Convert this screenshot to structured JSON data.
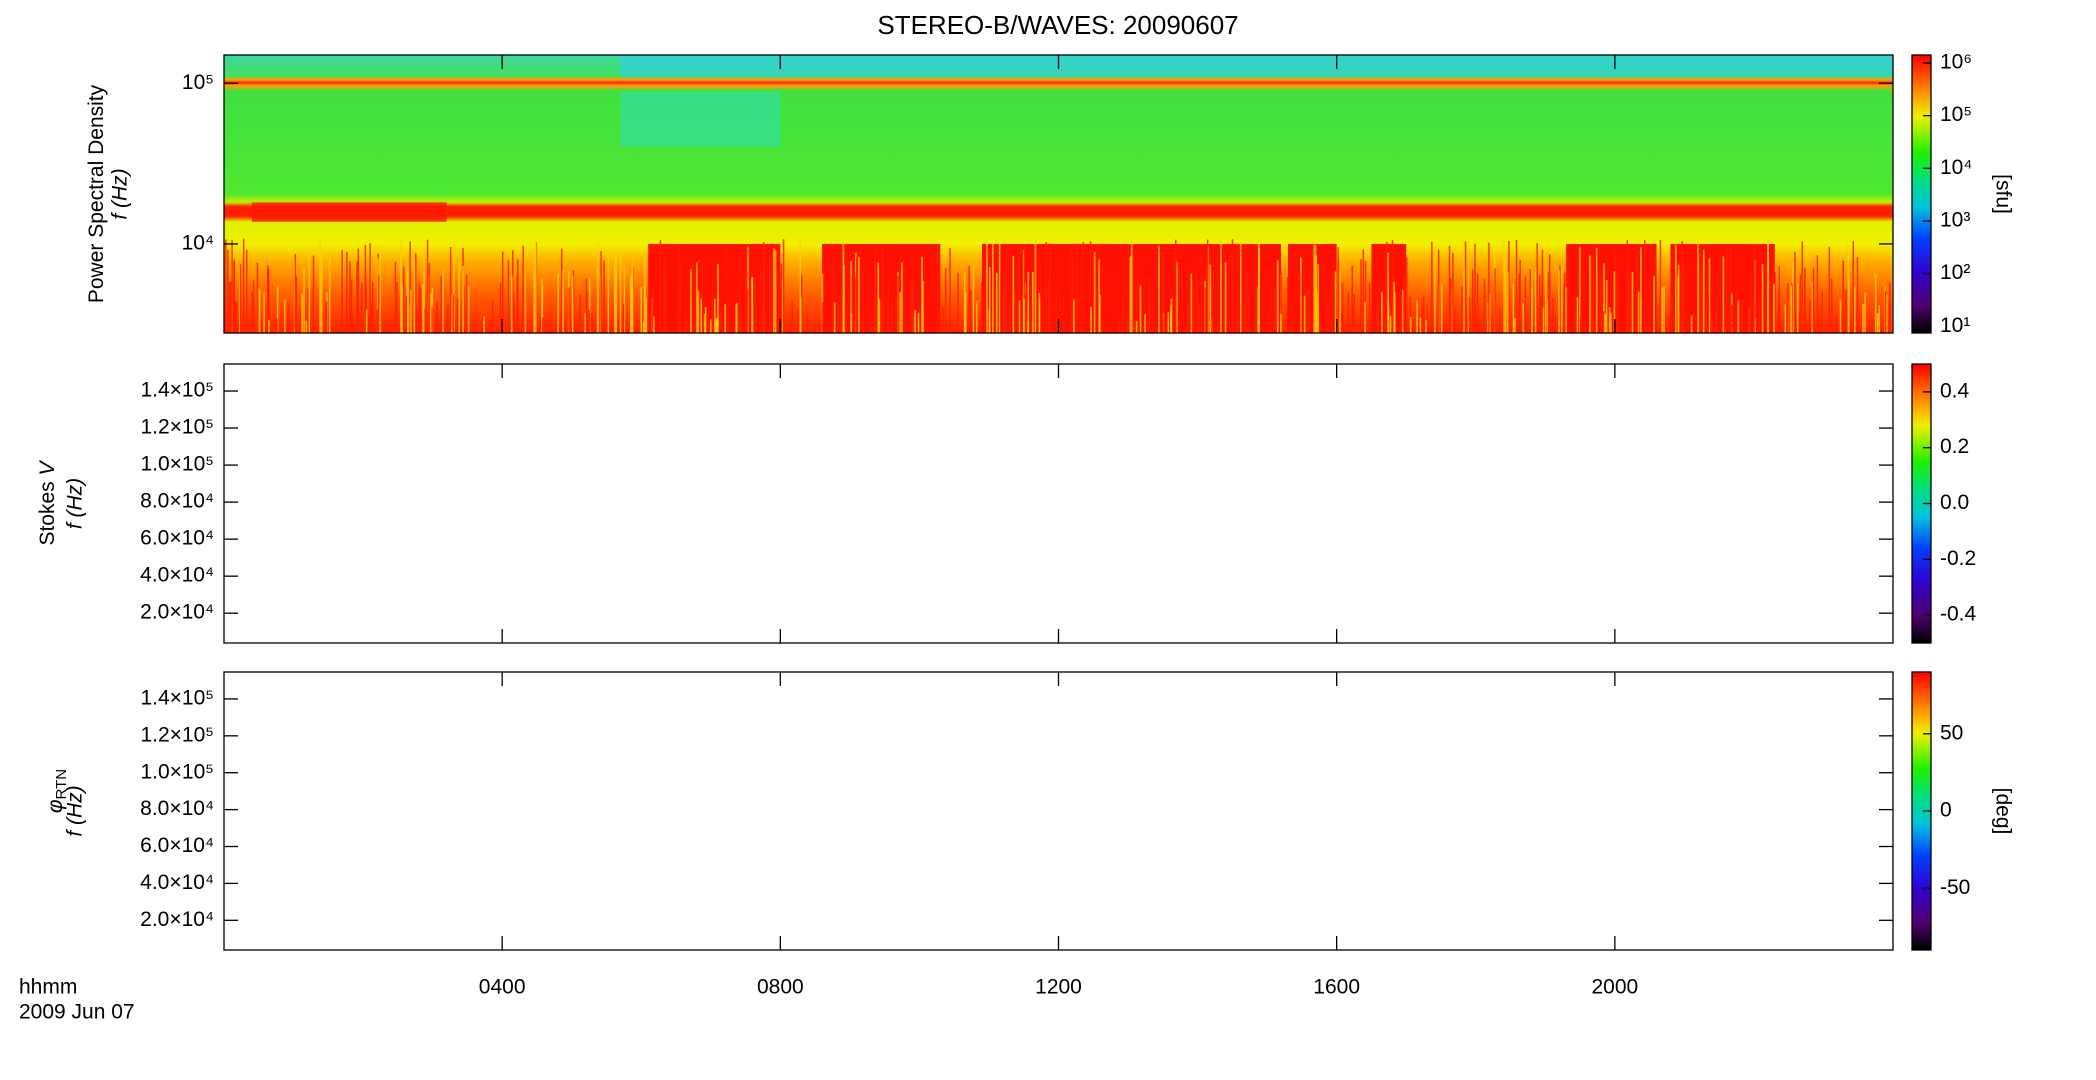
{
  "chart_data": [
    {
      "type": "spectrogram",
      "title": "STEREO-B/WAVES: 20090607",
      "ylabel": "Power Spectral Density",
      "ylabel_axis": "f (Hz)",
      "ylog": true,
      "ylim": [
        2790,
        150000
      ],
      "yticks": [
        {
          "value": 10000,
          "label": "10⁴"
        },
        {
          "value": 100000,
          "label": "10⁵"
        }
      ],
      "colorbar": {
        "log": true,
        "lim": [
          7.45,
          1420000
        ],
        "label": "[sfu]",
        "ticks": [
          {
            "value": 10,
            "label": "10¹"
          },
          {
            "value": 100,
            "label": "10²"
          },
          {
            "value": 1000,
            "label": "10³"
          },
          {
            "value": 10000,
            "label": "10⁴"
          },
          {
            "value": 100000,
            "label": "10⁵"
          },
          {
            "value": 1000000,
            "label": "10⁶"
          }
        ]
      }
    },
    {
      "type": "spectrogram",
      "ylabel": "Stokes",
      "ylabel_symbol": "V",
      "ylabel_axis": "f (Hz)",
      "ylog": false,
      "ylim": [
        3900,
        154600
      ],
      "yticks": [
        {
          "value": 20000,
          "label": "2.0×10⁴"
        },
        {
          "value": 40000,
          "label": "4.0×10⁴"
        },
        {
          "value": 60000,
          "label": "6.0×10⁴"
        },
        {
          "value": 80000,
          "label": "8.0×10⁴"
        },
        {
          "value": 100000,
          "label": "1.0×10⁵"
        },
        {
          "value": 120000,
          "label": "1.2×10⁵"
        },
        {
          "value": 140000,
          "label": "1.4×10⁵"
        }
      ],
      "colorbar": {
        "log": false,
        "lim": [
          -0.5,
          0.5
        ],
        "ticks": [
          -0.4,
          -0.2,
          {
            "value": 0,
            "label": "0.0"
          },
          0.2,
          0.4
        ]
      }
    },
    {
      "type": "spectrogram",
      "ylabel_symbol": "φ",
      "ylabel_subscript": "RTN",
      "ylabel_axis": "f (Hz)",
      "ylog": false,
      "ylim": [
        3900,
        154600
      ],
      "yticks": [
        {
          "value": 20000,
          "label": "2.0×10⁴"
        },
        {
          "value": 40000,
          "label": "4.0×10⁴"
        },
        {
          "value": 60000,
          "label": "6.0×10⁴"
        },
        {
          "value": 80000,
          "label": "8.0×10⁴"
        },
        {
          "value": 100000,
          "label": "1.0×10⁵"
        },
        {
          "value": 120000,
          "label": "1.2×10⁵"
        },
        {
          "value": 140000,
          "label": "1.4×10⁵"
        }
      ],
      "colorbar": {
        "log": false,
        "lim": [
          -90,
          90
        ],
        "label": "[deg]",
        "ticks": [
          -50,
          0,
          50
        ]
      },
      "xlabel": "hhmm",
      "xlabel_date": "2009 Jun 07",
      "xlim": [
        0,
        24
      ],
      "xticks": [
        {
          "value": 4,
          "label": "0400"
        },
        {
          "value": 8,
          "label": "0800"
        },
        {
          "value": 12,
          "label": "1200"
        },
        {
          "value": 16,
          "label": "1600"
        },
        {
          "value": 20,
          "label": "2000"
        }
      ]
    }
  ]
}
